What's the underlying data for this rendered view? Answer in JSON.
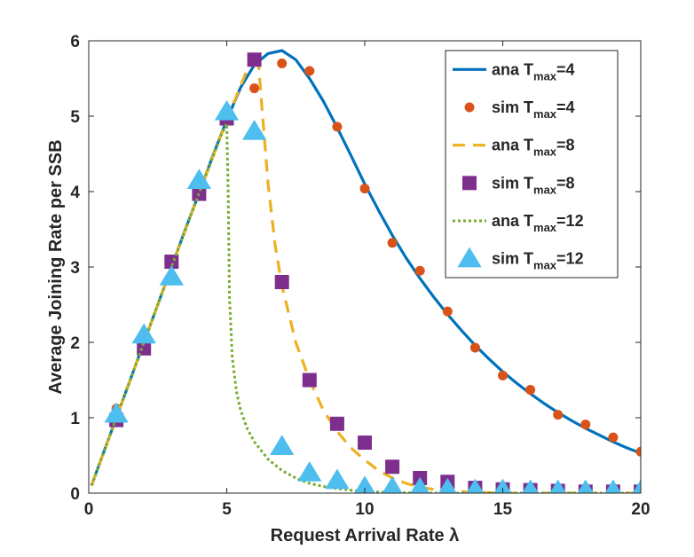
{
  "chart_data": {
    "type": "line",
    "title": "",
    "xlabel": "Request Arrival Rate λ",
    "ylabel": "Average Joining Rate per SSB",
    "xlim": [
      0,
      20
    ],
    "ylim": [
      0,
      6
    ],
    "xticks": [
      "0",
      "5",
      "10",
      "15",
      "20"
    ],
    "yticks": [
      "0",
      "1",
      "2",
      "3",
      "4",
      "5",
      "6"
    ],
    "grid": false,
    "legend_position": "top-right",
    "colors": {
      "blue": "#0072BD",
      "orange": "#D95319",
      "yellow": "#EDB120",
      "purple": "#7E2F8E",
      "green": "#77AC30",
      "cyan": "#4DBEEE"
    },
    "series": [
      {
        "name": "ana T",
        "subscript": "max",
        "suffix": "=4",
        "style": "solid-line",
        "color": "#0072BD",
        "x": [
          0.1,
          0.5,
          1,
          1.5,
          2,
          2.5,
          3,
          3.5,
          4,
          4.5,
          5,
          5.5,
          6,
          6.5,
          7,
          7.5,
          8,
          8.5,
          9,
          9.5,
          10,
          10.5,
          11,
          11.5,
          12,
          12.5,
          13,
          13.5,
          14,
          14.5,
          15,
          15.5,
          16,
          16.5,
          17,
          17.5,
          18,
          18.5,
          19,
          19.5,
          20
        ],
        "y": [
          0.1,
          0.5,
          1.0,
          1.5,
          2.0,
          2.5,
          3.0,
          3.5,
          3.98,
          4.48,
          4.95,
          5.38,
          5.68,
          5.83,
          5.87,
          5.75,
          5.5,
          5.2,
          4.85,
          4.48,
          4.1,
          3.75,
          3.42,
          3.12,
          2.85,
          2.6,
          2.37,
          2.16,
          1.96,
          1.78,
          1.61,
          1.46,
          1.32,
          1.19,
          1.07,
          0.96,
          0.86,
          0.77,
          0.68,
          0.6,
          0.53
        ]
      },
      {
        "name": "sim T",
        "subscript": "max",
        "suffix": "=4",
        "style": "dot-marker",
        "color": "#D95319",
        "x": [
          1,
          2,
          3,
          4,
          5,
          6,
          7,
          8,
          9,
          10,
          11,
          12,
          13,
          14,
          15,
          16,
          17,
          18,
          19,
          20
        ],
        "y": [
          1.12,
          1.93,
          3.05,
          4.05,
          4.95,
          5.37,
          5.7,
          5.6,
          4.86,
          4.04,
          3.32,
          2.95,
          2.41,
          1.93,
          1.56,
          1.37,
          1.04,
          0.91,
          0.74,
          0.55
        ]
      },
      {
        "name": "ana T",
        "subscript": "max",
        "suffix": "=8",
        "style": "dashed-line",
        "color": "#EDB120",
        "x": [
          0.1,
          1,
          2,
          3,
          4,
          5,
          5.5,
          6,
          6.15,
          6.3,
          6.5,
          6.75,
          7,
          7.5,
          8,
          8.5,
          9,
          9.5,
          10,
          10.5,
          11,
          11.5,
          12,
          12.5,
          13,
          14,
          15,
          16,
          17,
          18,
          19,
          20
        ],
        "y": [
          0.1,
          1.0,
          2.0,
          3.0,
          3.98,
          4.95,
          5.4,
          5.85,
          5.7,
          5.0,
          4.1,
          3.3,
          2.75,
          2.0,
          1.5,
          1.1,
          0.82,
          0.6,
          0.44,
          0.3,
          0.2,
          0.13,
          0.08,
          0.05,
          0.03,
          0.01,
          0.0,
          0.0,
          0.0,
          0.0,
          0.0,
          0.0
        ]
      },
      {
        "name": "sim T",
        "subscript": "max",
        "suffix": "=8",
        "style": "square-marker",
        "color": "#7E2F8E",
        "x": [
          1,
          2,
          3,
          4,
          5,
          6,
          7,
          8,
          9,
          10,
          11,
          12,
          13,
          14,
          15,
          16,
          17,
          18,
          19,
          20
        ],
        "y": [
          0.97,
          1.92,
          3.07,
          3.97,
          4.97,
          5.75,
          2.8,
          1.5,
          0.92,
          0.67,
          0.35,
          0.2,
          0.15,
          0.07,
          0.05,
          0.04,
          0.03,
          0.02,
          0.02,
          0.02
        ]
      },
      {
        "name": "ana T",
        "subscript": "max",
        "suffix": "=12",
        "style": "dotted-line",
        "color": "#77AC30",
        "x": [
          0.1,
          1,
          2,
          3,
          4,
          4.8,
          5.0,
          5.05,
          5.1,
          5.2,
          5.35,
          5.5,
          5.75,
          6,
          6.5,
          7,
          7.5,
          8,
          8.5,
          9,
          9.5,
          10,
          11,
          12,
          13,
          15,
          20
        ],
        "y": [
          0.1,
          1.0,
          2.0,
          3.0,
          3.98,
          4.75,
          4.9,
          4.0,
          2.6,
          1.8,
          1.35,
          1.1,
          0.85,
          0.68,
          0.45,
          0.3,
          0.2,
          0.13,
          0.09,
          0.06,
          0.04,
          0.02,
          0.01,
          0.0,
          0.0,
          0.0,
          0.0
        ]
      },
      {
        "name": "sim T",
        "subscript": "max",
        "suffix": "=12",
        "style": "triangle-marker",
        "color": "#4DBEEE",
        "x": [
          1,
          2,
          3,
          4,
          5,
          6,
          7,
          8,
          9,
          10,
          11,
          12,
          13,
          14,
          15,
          16,
          17,
          18,
          19,
          20
        ],
        "y": [
          1.05,
          2.1,
          2.87,
          4.15,
          5.06,
          4.8,
          0.62,
          0.27,
          0.17,
          0.08,
          0.07,
          0.06,
          0.05,
          0.04,
          0.04,
          0.03,
          0.03,
          0.03,
          0.03,
          0.03
        ]
      }
    ]
  }
}
